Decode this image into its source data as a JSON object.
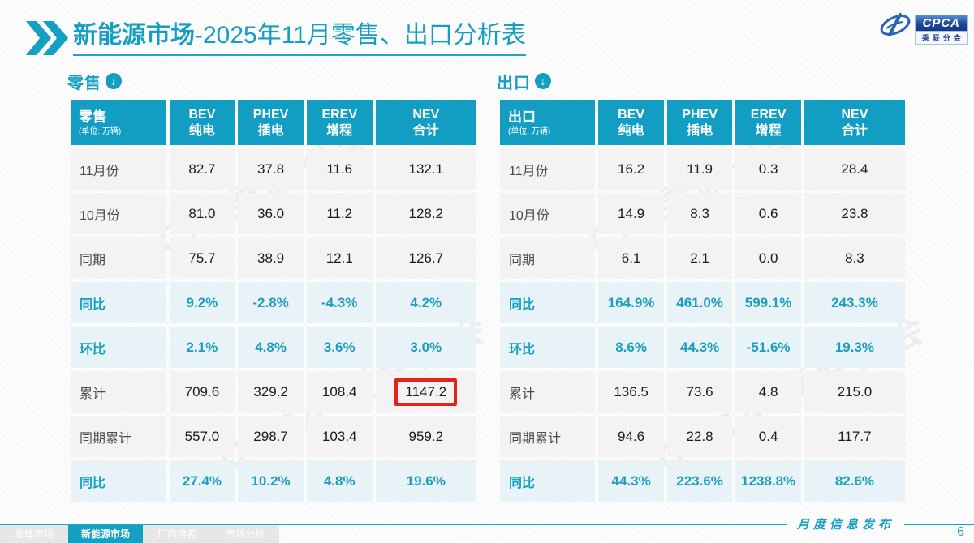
{
  "header": {
    "title_bold": "新能源市场",
    "title_rest": "-2025年11月零售、出口分析表",
    "logo": {
      "cpca": "CPCA",
      "subtitle": "乘联分会"
    }
  },
  "watermark": {
    "text": "CPCA 乘联分会"
  },
  "tables": {
    "retail": {
      "section_label": "零售",
      "corner_label": "零售",
      "unit": "(单位: 万辆)",
      "columns": [
        {
          "line1": "BEV",
          "line2": "纯电"
        },
        {
          "line1": "PHEV",
          "line2": "插电"
        },
        {
          "line1": "EREV",
          "line2": "增程"
        },
        {
          "line1": "NEV",
          "line2": "合计"
        }
      ],
      "rows": [
        {
          "label": "11月份",
          "kind": "data",
          "values": [
            "82.7",
            "37.8",
            "11.6",
            "132.1"
          ]
        },
        {
          "label": "10月份",
          "kind": "data",
          "values": [
            "81.0",
            "36.0",
            "11.2",
            "128.2"
          ]
        },
        {
          "label": "同期",
          "kind": "data",
          "values": [
            "75.7",
            "38.9",
            "12.1",
            "126.7"
          ]
        },
        {
          "label": "同比",
          "kind": "percent",
          "values": [
            "9.2%",
            "-2.8%",
            "-4.3%",
            "4.2%"
          ]
        },
        {
          "label": "环比",
          "kind": "percent",
          "values": [
            "2.1%",
            "4.8%",
            "3.6%",
            "3.0%"
          ]
        },
        {
          "label": "累计",
          "kind": "data",
          "values": [
            "709.6",
            "329.2",
            "108.4",
            "1147.2"
          ],
          "highlight_col": 3
        },
        {
          "label": "同期累计",
          "kind": "data",
          "values": [
            "557.0",
            "298.7",
            "103.4",
            "959.2"
          ]
        },
        {
          "label": "同比",
          "kind": "percent",
          "values": [
            "27.4%",
            "10.2%",
            "4.8%",
            "19.6%"
          ]
        }
      ]
    },
    "export": {
      "section_label": "出口",
      "corner_label": "出口",
      "unit": "(单位: 万辆)",
      "columns": [
        {
          "line1": "BEV",
          "line2": "纯电"
        },
        {
          "line1": "PHEV",
          "line2": "插电"
        },
        {
          "line1": "EREV",
          "line2": "增程"
        },
        {
          "line1": "NEV",
          "line2": "合计"
        }
      ],
      "rows": [
        {
          "label": "11月份",
          "kind": "data",
          "values": [
            "16.2",
            "11.9",
            "0.3",
            "28.4"
          ]
        },
        {
          "label": "10月份",
          "kind": "data",
          "values": [
            "14.9",
            "8.3",
            "0.6",
            "23.8"
          ]
        },
        {
          "label": "同期",
          "kind": "data",
          "values": [
            "6.1",
            "2.1",
            "0.0",
            "8.3"
          ]
        },
        {
          "label": "同比",
          "kind": "percent",
          "values": [
            "164.9%",
            "461.0%",
            "599.1%",
            "243.3%"
          ]
        },
        {
          "label": "环比",
          "kind": "percent",
          "values": [
            "8.6%",
            "44.3%",
            "-51.6%",
            "19.3%"
          ]
        },
        {
          "label": "累计",
          "kind": "data",
          "values": [
            "136.5",
            "73.6",
            "4.8",
            "215.0"
          ]
        },
        {
          "label": "同期累计",
          "kind": "data",
          "values": [
            "94.6",
            "22.8",
            "0.4",
            "117.7"
          ]
        },
        {
          "label": "同比",
          "kind": "percent",
          "values": [
            "44.3%",
            "223.6%",
            "1238.8%",
            "82.6%"
          ]
        }
      ]
    }
  },
  "footer": {
    "ribbon_text": "月度信息发布",
    "page_number": "6",
    "tabs": [
      {
        "label": "总体市场",
        "active": false
      },
      {
        "label": "新能源市场",
        "active": true
      },
      {
        "label": "厂商排名",
        "active": false
      },
      {
        "label": "市场分析",
        "active": false
      }
    ]
  },
  "colors": {
    "accent_teal": "#149FC2",
    "header_bg": "#129EC3",
    "percent_row_bg": "#E8F3F7",
    "data_row_bg": "#F3F3F3",
    "highlight_red": "#E2231A",
    "logo_blue": "#1C4997",
    "tab_inactive_bg": "#E7E7E7"
  },
  "chart_data": [
    {
      "type": "table",
      "title": "零售 (单位: 万辆)",
      "columns": [
        "零售",
        "BEV纯电",
        "PHEV插电",
        "EREV增程",
        "NEV合计"
      ],
      "rows": [
        [
          "11月份",
          82.7,
          37.8,
          11.6,
          132.1
        ],
        [
          "10月份",
          81.0,
          36.0,
          11.2,
          128.2
        ],
        [
          "同期",
          75.7,
          38.9,
          12.1,
          126.7
        ],
        [
          "同比",
          "9.2%",
          "-2.8%",
          "-4.3%",
          "4.2%"
        ],
        [
          "环比",
          "2.1%",
          "4.8%",
          "3.6%",
          "3.0%"
        ],
        [
          "累计",
          709.6,
          329.2,
          108.4,
          1147.2
        ],
        [
          "同期累计",
          557.0,
          298.7,
          103.4,
          959.2
        ],
        [
          "同比",
          "27.4%",
          "10.2%",
          "4.8%",
          "19.6%"
        ]
      ],
      "annotations": [
        "红框标注: 累计 NEV合计 1147.2"
      ]
    },
    {
      "type": "table",
      "title": "出口 (单位: 万辆)",
      "columns": [
        "出口",
        "BEV纯电",
        "PHEV插电",
        "EREV增程",
        "NEV合计"
      ],
      "rows": [
        [
          "11月份",
          16.2,
          11.9,
          0.3,
          28.4
        ],
        [
          "10月份",
          14.9,
          8.3,
          0.6,
          23.8
        ],
        [
          "同期",
          6.1,
          2.1,
          0.0,
          8.3
        ],
        [
          "同比",
          "164.9%",
          "461.0%",
          "599.1%",
          "243.3%"
        ],
        [
          "环比",
          "8.6%",
          "44.3%",
          "-51.6%",
          "19.3%"
        ],
        [
          "累计",
          136.5,
          73.6,
          4.8,
          215.0
        ],
        [
          "同期累计",
          94.6,
          22.8,
          0.4,
          117.7
        ],
        [
          "同比",
          "44.3%",
          "223.6%",
          "1238.8%",
          "82.6%"
        ]
      ]
    }
  ]
}
